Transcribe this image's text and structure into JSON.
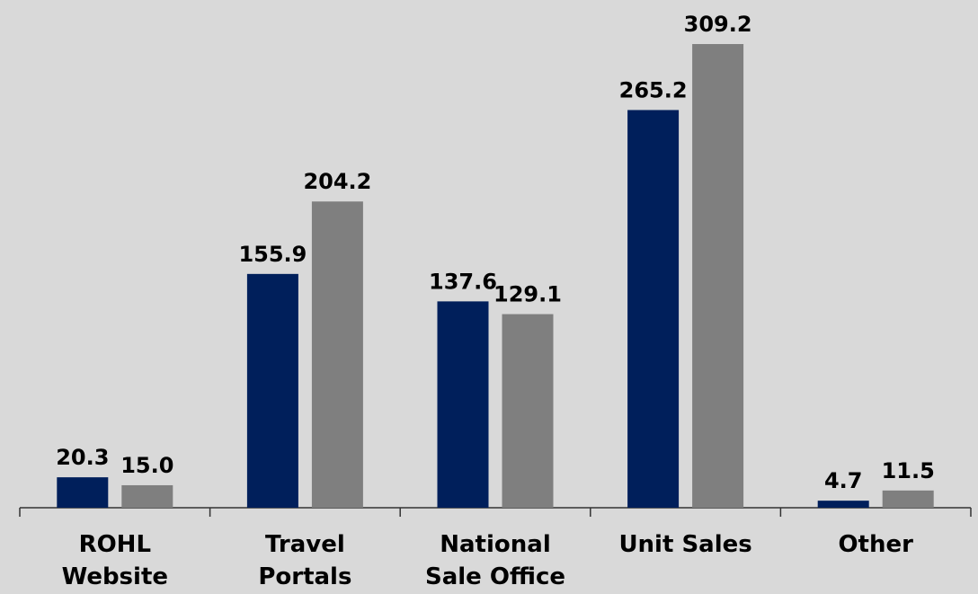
{
  "chart_data": {
    "type": "bar",
    "categories": [
      "ROHL\nWebsite",
      "Travel\nPortals",
      "National\nSale Office",
      "Unit Sales",
      "Other"
    ],
    "series": [
      {
        "color": "#001f5b",
        "values": [
          20.3,
          155.9,
          137.6,
          265.2,
          4.7
        ],
        "value_labels": [
          "20.3",
          "155.9",
          "137.6",
          "265.2",
          "4.7"
        ]
      },
      {
        "color": "#7f7f7f",
        "values": [
          15,
          204.2,
          129.1,
          309.2,
          11.5
        ],
        "value_labels": [
          "15.0",
          "204.2",
          "129.1",
          "309.2",
          "11.5"
        ]
      }
    ],
    "ylim": [
      0,
      320
    ]
  }
}
